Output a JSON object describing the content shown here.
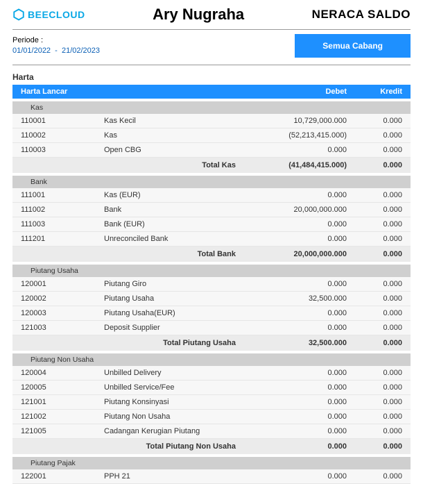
{
  "brand": {
    "name": "BEECLOUD",
    "accent": "#0aa8e6"
  },
  "company": "Ary Nugraha",
  "report_title": "NERACA SALDO",
  "period_label": "Periode :",
  "period_from": "01/01/2022",
  "period_to": "21/02/2023",
  "branch_button": "Semua Cabang",
  "section": "Harta",
  "columns": {
    "col1": "Harta Lancar",
    "debet": "Debet",
    "kredit": "Kredit"
  },
  "groups": [
    {
      "name": "Kas",
      "rows": [
        {
          "code": "110001",
          "name": "Kas Kecil",
          "debet": "10,729,000.000",
          "kredit": "0.000"
        },
        {
          "code": "110002",
          "name": "Kas",
          "debet": "(52,213,415.000)",
          "kredit": "0.000"
        },
        {
          "code": "110003",
          "name": "Open CBG",
          "debet": "0.000",
          "kredit": "0.000"
        }
      ],
      "total_label": "Total Kas",
      "total_debet": "(41,484,415.000)",
      "total_kredit": "0.000"
    },
    {
      "name": "Bank",
      "rows": [
        {
          "code": "111001",
          "name": "Kas (EUR)",
          "debet": "0.000",
          "kredit": "0.000"
        },
        {
          "code": "111002",
          "name": "Bank",
          "debet": "20,000,000.000",
          "kredit": "0.000"
        },
        {
          "code": "111003",
          "name": "Bank (EUR)",
          "debet": "0.000",
          "kredit": "0.000"
        },
        {
          "code": "111201",
          "name": "Unreconciled Bank",
          "debet": "0.000",
          "kredit": "0.000"
        }
      ],
      "total_label": "Total Bank",
      "total_debet": "20,000,000.000",
      "total_kredit": "0.000"
    },
    {
      "name": "Piutang Usaha",
      "rows": [
        {
          "code": "120001",
          "name": "Piutang Giro",
          "debet": "0.000",
          "kredit": "0.000"
        },
        {
          "code": "120002",
          "name": "Piutang Usaha",
          "debet": "32,500.000",
          "kredit": "0.000"
        },
        {
          "code": "120003",
          "name": "Piutang Usaha(EUR)",
          "debet": "0.000",
          "kredit": "0.000"
        },
        {
          "code": "121003",
          "name": "Deposit Supplier",
          "debet": "0.000",
          "kredit": "0.000"
        }
      ],
      "total_label": "Total Piutang Usaha",
      "total_debet": "32,500.000",
      "total_kredit": "0.000"
    },
    {
      "name": "Piutang Non Usaha",
      "rows": [
        {
          "code": "120004",
          "name": "Unbilled Delivery",
          "debet": "0.000",
          "kredit": "0.000"
        },
        {
          "code": "120005",
          "name": "Unbilled Service/Fee",
          "debet": "0.000",
          "kredit": "0.000"
        },
        {
          "code": "121001",
          "name": "Piutang Konsinyasi",
          "debet": "0.000",
          "kredit": "0.000"
        },
        {
          "code": "121002",
          "name": "Piutang Non Usaha",
          "debet": "0.000",
          "kredit": "0.000"
        },
        {
          "code": "121005",
          "name": "Cadangan Kerugian Piutang",
          "debet": "0.000",
          "kredit": "0.000"
        }
      ],
      "total_label": "Total Piutang Non Usaha",
      "total_debet": "0.000",
      "total_kredit": "0.000"
    },
    {
      "name": "Piutang Pajak",
      "rows": [
        {
          "code": "122001",
          "name": "PPH 21",
          "debet": "0.000",
          "kredit": "0.000"
        }
      ]
    }
  ]
}
